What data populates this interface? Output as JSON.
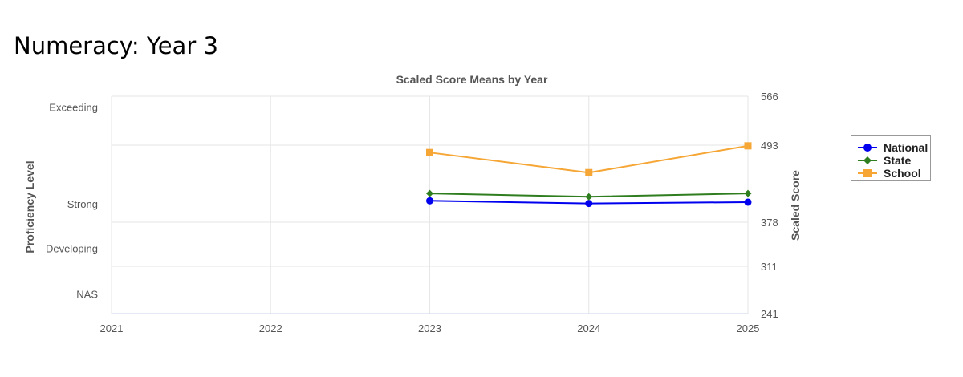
{
  "page": {
    "title": "Numeracy: Year 3"
  },
  "chart_data": {
    "type": "line",
    "title": "Scaled Score Means by Year",
    "x": [
      "2021",
      "2022",
      "2023",
      "2024",
      "2025"
    ],
    "y_left_label": "Proficiency Level",
    "y_right_label": "Scaled Score",
    "y_right_ticks": [
      "566",
      "493",
      "378",
      "311",
      "241"
    ],
    "y_right_tick_values": [
      566,
      493,
      378,
      311,
      241
    ],
    "y_left_bands": [
      "Exceeding",
      "Strong",
      "Developing",
      "NAS"
    ],
    "ylim": [
      241,
      566
    ],
    "grid": true,
    "legend_position": "right",
    "series": [
      {
        "name": "National",
        "color": "#0000ee",
        "marker": "circle",
        "values": [
          null,
          null,
          410,
          406,
          408
        ]
      },
      {
        "name": "State",
        "color": "#2e7d1e",
        "marker": "diamond",
        "values": [
          null,
          null,
          421,
          416,
          421
        ]
      },
      {
        "name": "School",
        "color": "#f5a635",
        "marker": "square",
        "values": [
          null,
          null,
          482,
          452,
          492
        ]
      }
    ]
  }
}
